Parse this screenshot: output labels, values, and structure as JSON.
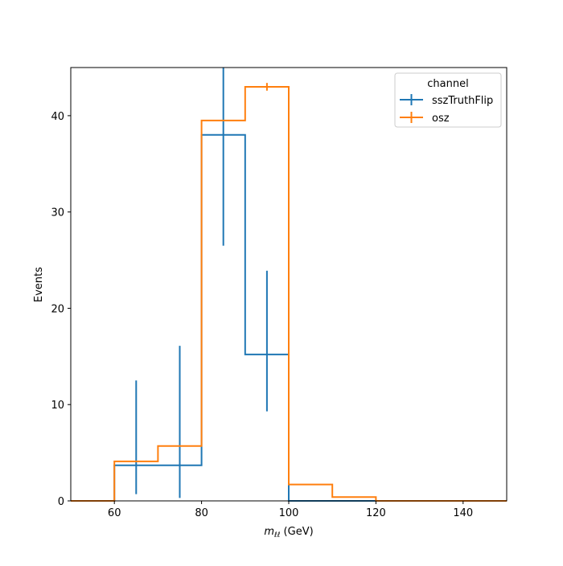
{
  "chart_data": {
    "type": "line",
    "drawstyle": "step-histogram",
    "xlabel": {
      "base": "m",
      "sub": "ℓℓ",
      "suffix": " (GeV)"
    },
    "ylabel": "Events",
    "xlim": [
      50,
      150
    ],
    "ylim": [
      0,
      45
    ],
    "xticks": [
      60,
      80,
      100,
      120,
      140
    ],
    "yticks": [
      0,
      10,
      20,
      30,
      40
    ],
    "grid": false,
    "legend": {
      "title": "channel",
      "placement": "top-right"
    },
    "bin_edges": [
      50,
      60,
      70,
      80,
      90,
      100,
      110,
      120,
      130,
      140,
      150
    ],
    "series": [
      {
        "name": "sszTruthFlip",
        "color": "#1f77b4",
        "values": [
          0,
          3.7,
          3.7,
          38.0,
          15.2,
          0,
          0,
          0,
          0,
          0
        ],
        "errors": [
          {
            "x": 65,
            "low": 0.7,
            "high": 12.5
          },
          {
            "x": 75,
            "low": 0.3,
            "high": 16.1
          },
          {
            "x": 85,
            "low": 26.5,
            "high": 45.0
          },
          {
            "x": 95,
            "low": 9.3,
            "high": 23.9
          }
        ]
      },
      {
        "name": "osz",
        "color": "#ff7f0e",
        "values": [
          0,
          4.1,
          5.7,
          39.5,
          43.0,
          1.7,
          0.4,
          0,
          0,
          0
        ],
        "errors": [
          {
            "x": 95,
            "low": 42.6,
            "high": 43.4
          }
        ]
      }
    ]
  }
}
